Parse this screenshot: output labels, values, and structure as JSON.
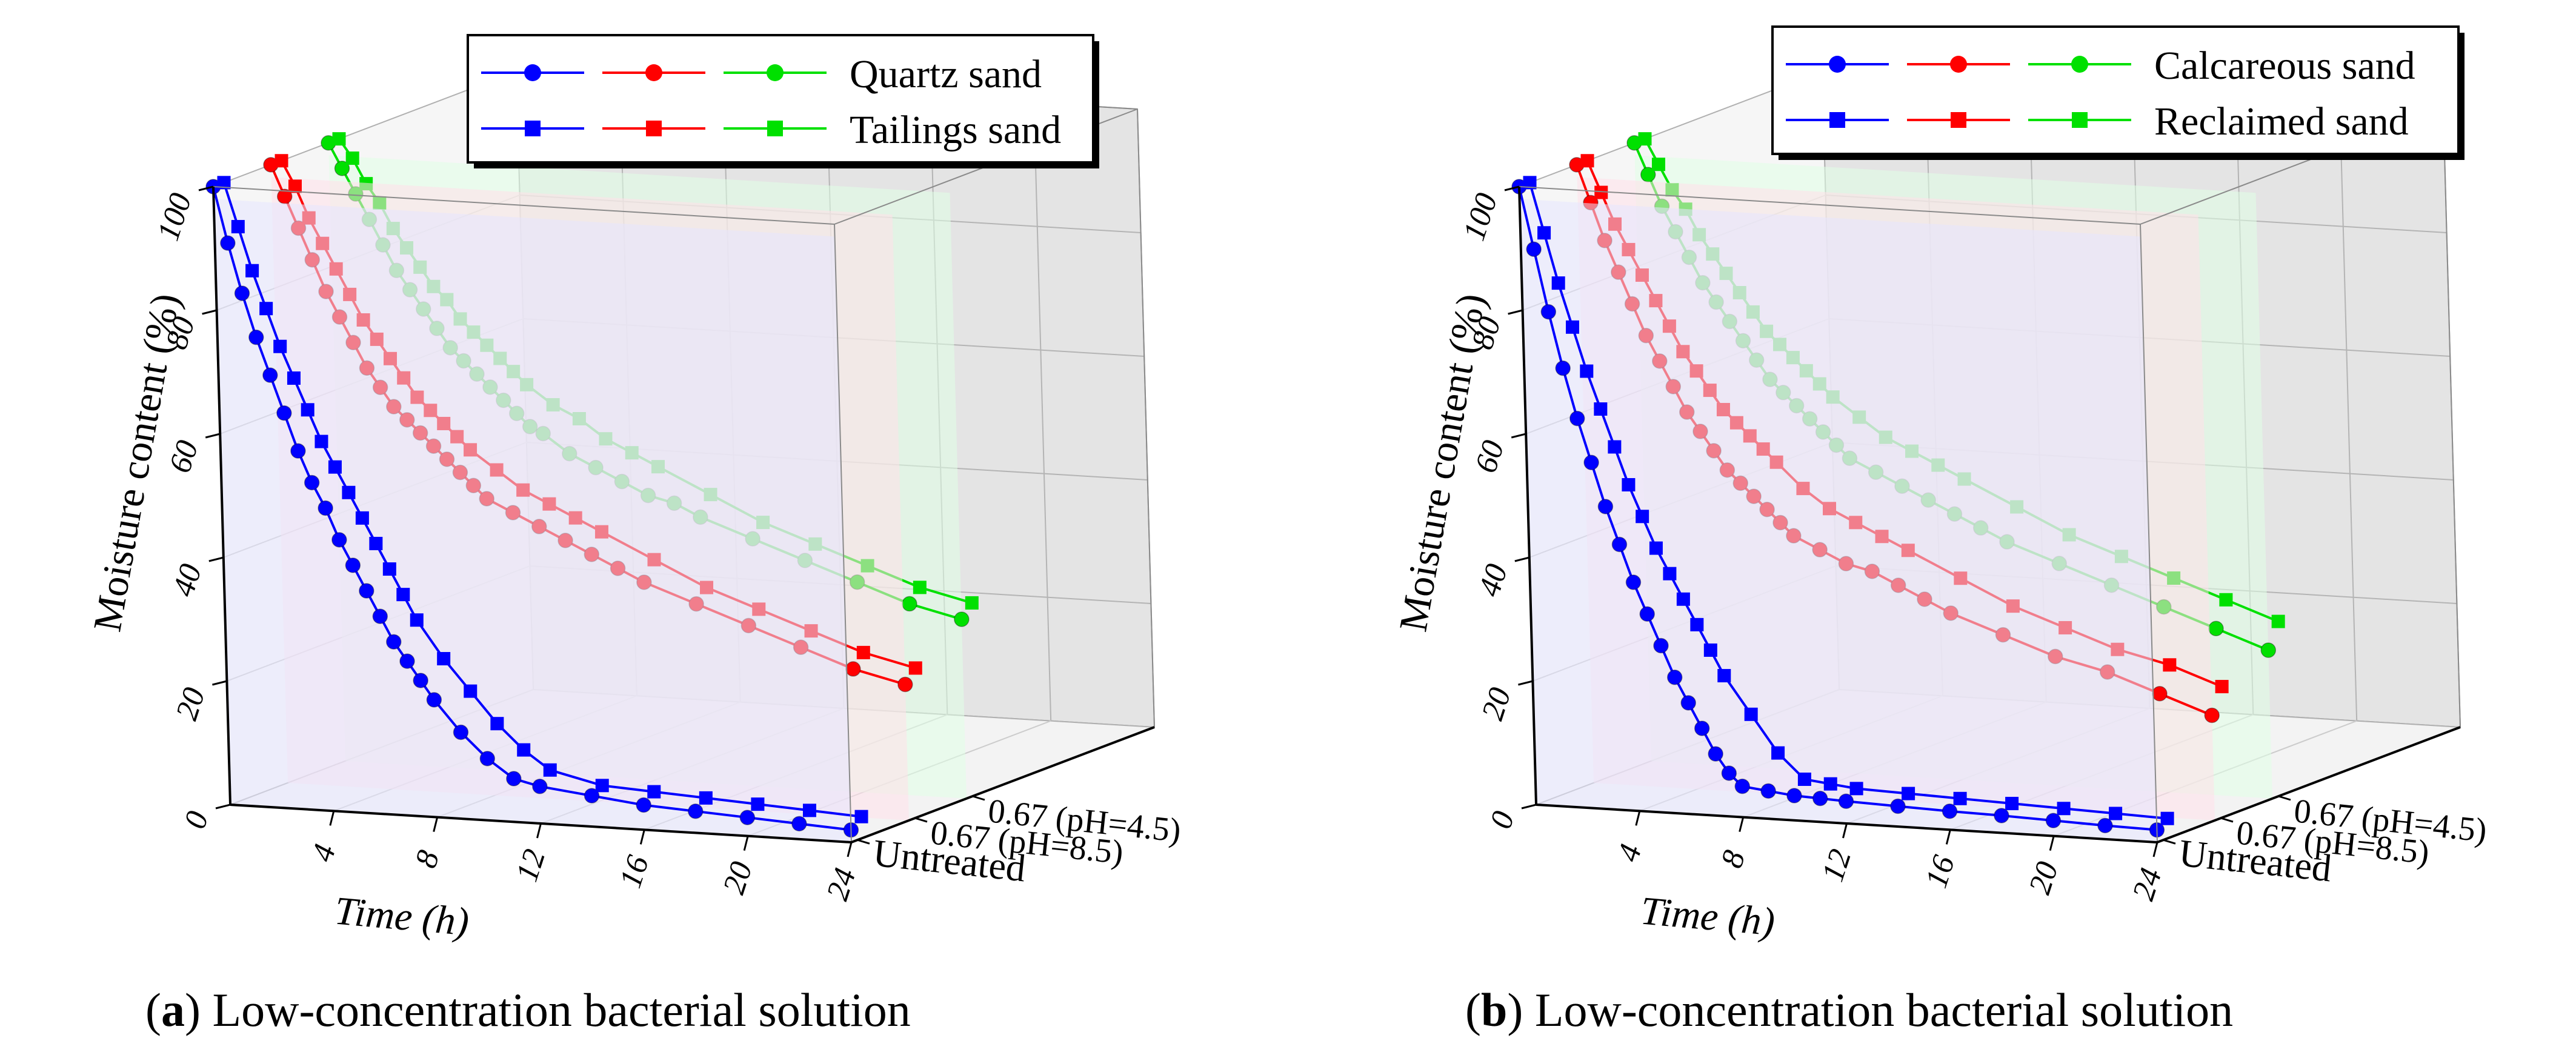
{
  "chart_data": [
    {
      "type": "line",
      "subtype": "3d-waterfall",
      "panel_letter": "a",
      "caption": "Low-concentration bacterial solution",
      "xlabel": "Time (h)",
      "ylabel": "Moisture content (%)",
      "xticks": [
        "4",
        "8",
        "12",
        "16",
        "20",
        "24"
      ],
      "zticks": [
        "0",
        "20",
        "40",
        "60",
        "80",
        "100"
      ],
      "xlim": [
        0,
        24
      ],
      "zlim": [
        0,
        100
      ],
      "depth_labels": [
        "Untreated",
        "0.67 (pH=8.5)",
        "0.67 (pH=4.5)"
      ],
      "legend": {
        "position": "top-right",
        "entries": [
          "Quartz sand",
          "Tailings sand"
        ]
      },
      "colors": {
        "Untreated": "#0000ff",
        "0.67 (pH=8.5)": "#ff0000",
        "0.67 (pH=4.5)": "#00e000"
      },
      "series": [
        {
          "name": "Quartz sand",
          "group": "Untreated",
          "marker": "circle",
          "x": [
            0,
            0.5,
            1,
            1.5,
            2,
            2.5,
            3,
            3.5,
            4,
            4.5,
            5,
            5.5,
            6,
            6.5,
            7,
            7.5,
            8,
            9,
            10,
            11,
            12,
            14,
            16,
            18,
            20,
            22,
            24
          ],
          "values": [
            100,
            91,
            83,
            76,
            70,
            64,
            58,
            53,
            49,
            44,
            40,
            36,
            32,
            28,
            25,
            22,
            19,
            14,
            10,
            7,
            6,
            5,
            4,
            3.5,
            3,
            2.5,
            2
          ]
        },
        {
          "name": "Tailings sand",
          "group": "Untreated",
          "marker": "square",
          "x": [
            0,
            0.5,
            1,
            1.5,
            2,
            2.5,
            3,
            3.5,
            4,
            4.5,
            5,
            5.5,
            6,
            6.5,
            7,
            8,
            9,
            10,
            11,
            12,
            14,
            16,
            18,
            20,
            22,
            24
          ],
          "values": [
            100,
            93,
            86,
            80,
            74,
            69,
            64,
            59,
            55,
            51,
            47,
            43,
            39,
            35,
            31,
            25,
            20,
            15,
            11,
            8,
            6,
            5.5,
            5,
            4.5,
            4,
            3.5
          ]
        },
        {
          "name": "Quartz sand",
          "group": "0.67 (pH=8.5)",
          "marker": "circle",
          "x": [
            0,
            0.5,
            1,
            1.5,
            2,
            2.5,
            3,
            3.5,
            4,
            4.5,
            5,
            5.5,
            6,
            6.5,
            7,
            7.5,
            8,
            9,
            10,
            11,
            12,
            13,
            14,
            16,
            18,
            20,
            22,
            24
          ],
          "values": [
            100,
            95,
            90,
            85,
            80,
            76,
            72,
            68,
            65,
            62,
            60,
            58,
            56,
            54,
            52,
            50,
            48,
            46,
            44,
            42,
            40,
            38,
            36,
            33,
            30,
            27,
            24,
            22
          ]
        },
        {
          "name": "Tailings sand",
          "group": "0.67 (pH=8.5)",
          "marker": "square",
          "x": [
            0,
            0.5,
            1,
            1.5,
            2,
            2.5,
            3,
            3.5,
            4,
            4.5,
            5,
            5.5,
            6,
            6.5,
            7,
            8,
            9,
            10,
            11,
            12,
            14,
            16,
            18,
            20,
            22,
            24
          ],
          "values": [
            100,
            96,
            91,
            87,
            83,
            79,
            75,
            72,
            69,
            66,
            63,
            61,
            59,
            57,
            55,
            52,
            49,
            47,
            45,
            43,
            39,
            35,
            32,
            29,
            26,
            24
          ]
        },
        {
          "name": "Quartz sand",
          "group": "0.67 (pH=4.5)",
          "marker": "circle",
          "x": [
            0,
            0.5,
            1,
            1.5,
            2,
            2.5,
            3,
            3.5,
            4,
            4.5,
            5,
            5.5,
            6,
            6.5,
            7,
            7.5,
            8,
            9,
            10,
            11,
            12,
            13,
            14,
            16,
            18,
            20,
            22,
            24
          ],
          "values": [
            100,
            96,
            92,
            88,
            84,
            80,
            77,
            74,
            71,
            68,
            66,
            64,
            62,
            60,
            58,
            56,
            55,
            52,
            50,
            48,
            46,
            45,
            43,
            40,
            37,
            34,
            31,
            29
          ]
        },
        {
          "name": "Tailings sand",
          "group": "0.67 (pH=4.5)",
          "marker": "square",
          "x": [
            0,
            0.5,
            1,
            1.5,
            2,
            2.5,
            3,
            3.5,
            4,
            4.5,
            5,
            5.5,
            6,
            6.5,
            7,
            8,
            9,
            10,
            11,
            12,
            14,
            16,
            18,
            20,
            22,
            24
          ],
          "values": [
            100,
            97,
            93,
            90,
            86,
            83,
            80,
            77,
            75,
            72,
            70,
            68,
            66,
            64,
            62,
            59,
            57,
            54,
            52,
            50,
            46,
            42,
            39,
            36,
            33,
            31
          ]
        }
      ]
    },
    {
      "type": "line",
      "subtype": "3d-waterfall",
      "panel_letter": "b",
      "caption": "Low-concentration bacterial solution",
      "xlabel": "Time (h)",
      "ylabel": "Moisture content (%)",
      "xticks": [
        "4",
        "8",
        "12",
        "16",
        "20",
        "24"
      ],
      "zticks": [
        "0",
        "20",
        "40",
        "60",
        "80",
        "100"
      ],
      "xlim": [
        0,
        24
      ],
      "zlim": [
        0,
        100
      ],
      "depth_labels": [
        "Untreated",
        "0.67 (pH=8.5)",
        "0.67 (pH=4.5)"
      ],
      "legend": {
        "position": "top-right",
        "entries": [
          "Calcareous sand",
          "Reclaimed sand"
        ]
      },
      "colors": {
        "Untreated": "#0000ff",
        "0.67 (pH=8.5)": "#ff0000",
        "0.67 (pH=4.5)": "#00e000"
      },
      "series": [
        {
          "name": "Calcareous sand",
          "group": "Untreated",
          "marker": "circle",
          "x": [
            0,
            0.5,
            1,
            1.5,
            2,
            2.5,
            3,
            3.5,
            4,
            4.5,
            5,
            5.5,
            6,
            6.5,
            7,
            7.5,
            8,
            9,
            10,
            11,
            12,
            14,
            16,
            18,
            20,
            22,
            24
          ],
          "values": [
            100,
            90,
            80,
            71,
            63,
            56,
            49,
            43,
            37,
            32,
            27,
            22,
            18,
            14,
            10,
            7,
            5,
            4.5,
            4,
            3.8,
            3.6,
            3.3,
            3,
            2.8,
            2.5,
            2.2,
            2
          ]
        },
        {
          "name": "Reclaimed sand",
          "group": "Untreated",
          "marker": "square",
          "x": [
            0,
            0.5,
            1,
            1.5,
            2,
            2.5,
            3,
            3.5,
            4,
            4.5,
            5,
            5.5,
            6,
            6.5,
            7,
            8,
            9,
            10,
            11,
            12,
            14,
            16,
            18,
            20,
            22,
            24
          ],
          "values": [
            100,
            92,
            84,
            77,
            70,
            64,
            58,
            52,
            47,
            42,
            38,
            34,
            30,
            26,
            22,
            16,
            10,
            6,
            5.5,
            5,
            4.7,
            4.4,
            4.1,
            3.8,
            3.5,
            3.2
          ]
        },
        {
          "name": "Calcareous sand",
          "group": "0.67 (pH=8.5)",
          "marker": "circle",
          "x": [
            0,
            0.5,
            1,
            1.5,
            2,
            2.5,
            3,
            3.5,
            4,
            4.5,
            5,
            5.5,
            6,
            6.5,
            7,
            7.5,
            8,
            9,
            10,
            11,
            12,
            13,
            14,
            16,
            18,
            20,
            22,
            24
          ],
          "values": [
            100,
            94,
            88,
            83,
            78,
            73,
            69,
            65,
            61,
            58,
            55,
            52,
            50,
            48,
            46,
            44,
            42,
            40,
            38,
            37,
            35,
            33,
            31,
            28,
            25,
            23,
            20,
            17
          ]
        },
        {
          "name": "Reclaimed sand",
          "group": "0.67 (pH=8.5)",
          "marker": "square",
          "x": [
            0,
            0.5,
            1,
            1.5,
            2,
            2.5,
            3,
            3.5,
            4,
            4.5,
            5,
            5.5,
            6,
            6.5,
            7,
            8,
            9,
            10,
            11,
            12,
            14,
            16,
            18,
            20,
            22,
            24
          ],
          "values": [
            100,
            95,
            90,
            86,
            82,
            78,
            74,
            70,
            67,
            64,
            61,
            59,
            57,
            55,
            53,
            49,
            46,
            44,
            42,
            40,
            36,
            32,
            29,
            26,
            24,
            21
          ]
        },
        {
          "name": "Calcareous sand",
          "group": "0.67 (pH=4.5)",
          "marker": "circle",
          "x": [
            0,
            0.5,
            1,
            1.5,
            2,
            2.5,
            3,
            3.5,
            4,
            4.5,
            5,
            5.5,
            6,
            6.5,
            7,
            7.5,
            8,
            9,
            10,
            11,
            12,
            13,
            14,
            16,
            18,
            20,
            22,
            24
          ],
          "values": [
            100,
            95,
            90,
            86,
            82,
            78,
            75,
            72,
            69,
            66,
            63,
            61,
            59,
            57,
            55,
            53,
            51,
            49,
            47,
            45,
            43,
            41,
            39,
            36,
            33,
            30,
            27,
            24
          ]
        },
        {
          "name": "Reclaimed sand",
          "group": "0.67 (pH=4.5)",
          "marker": "square",
          "x": [
            0,
            0.5,
            1,
            1.5,
            2,
            2.5,
            3,
            3.5,
            4,
            4.5,
            5,
            5.5,
            6,
            6.5,
            7,
            8,
            9,
            10,
            11,
            12,
            14,
            16,
            18,
            20,
            22,
            24
          ],
          "values": [
            100,
            96,
            92,
            89,
            85,
            82,
            79,
            76,
            73,
            70,
            68,
            66,
            64,
            62,
            60,
            57,
            54,
            52,
            50,
            48,
            44,
            40,
            37,
            34,
            31,
            28
          ]
        }
      ]
    }
  ]
}
